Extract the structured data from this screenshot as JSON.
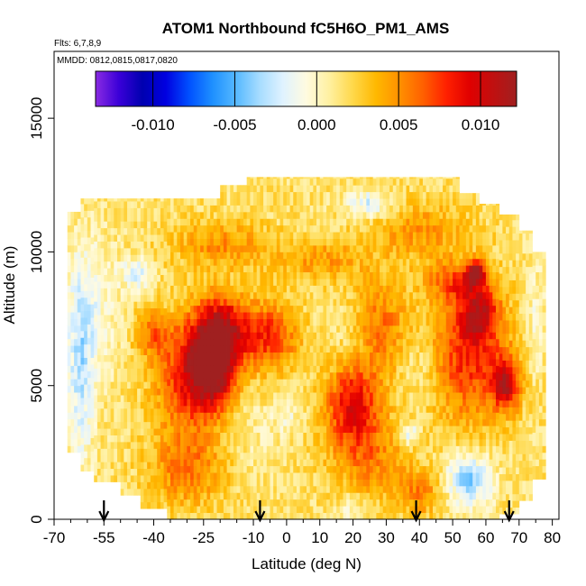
{
  "chart_data": {
    "type": "heatmap",
    "title": "ATOM1 Northbound fC5H6O_PM1_AMS",
    "flights_note": "Flts: 6,7,8,9",
    "dates_note": "MMDD: 0812,0815,0817,0820",
    "xlabel": "Latitude (deg N)",
    "ylabel": "Altitude (m)",
    "xlim": [
      -70,
      82
    ],
    "ylim": [
      0,
      17500
    ],
    "x_ticks": [
      -70,
      -55,
      -40,
      -25,
      -10,
      0,
      10,
      20,
      30,
      40,
      50,
      60,
      70,
      80
    ],
    "x_tick_labels": [
      "-70",
      "-55",
      "-40",
      "-25",
      "-10",
      "0",
      "10",
      "20",
      "30",
      "40",
      "50",
      "60",
      "70",
      "80"
    ],
    "x_minor_ticks": [
      -65,
      -60,
      -50,
      -45,
      -35,
      -30,
      -20,
      -15,
      -5,
      5,
      15,
      25,
      35,
      45,
      55,
      65,
      75
    ],
    "y_ticks": [
      0,
      5000,
      10000,
      15000
    ],
    "y_tick_labels": [
      "0",
      "5000",
      "10000",
      "15000"
    ],
    "colorbar": {
      "range": [
        -0.0135,
        0.0122
      ],
      "ticks": [
        -0.01,
        -0.005,
        0.0,
        0.005,
        0.01
      ],
      "tick_labels": [
        "-0.010",
        "-0.005",
        "0.000",
        "0.005",
        "0.010"
      ],
      "colors": [
        "#8a2be2",
        "#3a00d8",
        "#0000b0",
        "#0000e0",
        "#0050ff",
        "#1e90ff",
        "#55b8ff",
        "#a6dcff",
        "#dff2ff",
        "#fffbe0",
        "#fff0a0",
        "#ffd84a",
        "#ffb800",
        "#ff9000",
        "#ff6000",
        "#ff2000",
        "#e00000",
        "#c01010",
        "#a02020"
      ]
    },
    "flight_markers": {
      "latitudes": [
        -55,
        -8,
        39,
        67
      ]
    },
    "lat_bands": [
      {
        "lat": [
          -66,
          -62
        ],
        "alt": [
          2500,
          11500
        ]
      },
      {
        "lat": [
          -62,
          -58
        ],
        "alt": [
          1800,
          12000
        ]
      },
      {
        "lat": [
          -58,
          -50
        ],
        "alt": [
          1400,
          12000
        ]
      },
      {
        "lat": [
          -50,
          -44
        ],
        "alt": [
          900,
          12000
        ]
      },
      {
        "lat": [
          -44,
          -36
        ],
        "alt": [
          400,
          12000
        ]
      },
      {
        "lat": [
          -36,
          -28
        ],
        "alt": [
          0,
          12000
        ]
      },
      {
        "lat": [
          -28,
          -20
        ],
        "alt": [
          0,
          12000
        ]
      },
      {
        "lat": [
          -20,
          -12
        ],
        "alt": [
          0,
          12500
        ]
      },
      {
        "lat": [
          -12,
          -4
        ],
        "alt": [
          0,
          12800
        ]
      },
      {
        "lat": [
          -4,
          4
        ],
        "alt": [
          0,
          12800
        ]
      },
      {
        "lat": [
          4,
          12
        ],
        "alt": [
          0,
          12800
        ]
      },
      {
        "lat": [
          12,
          20
        ],
        "alt": [
          0,
          12800
        ]
      },
      {
        "lat": [
          20,
          28
        ],
        "alt": [
          0,
          12800
        ]
      },
      {
        "lat": [
          28,
          36
        ],
        "alt": [
          0,
          12800
        ]
      },
      {
        "lat": [
          36,
          44
        ],
        "alt": [
          0,
          12800
        ]
      },
      {
        "lat": [
          44,
          52
        ],
        "alt": [
          0,
          12800
        ]
      },
      {
        "lat": [
          52,
          58
        ],
        "alt": [
          0,
          12200
        ]
      },
      {
        "lat": [
          58,
          64
        ],
        "alt": [
          0,
          11800
        ]
      },
      {
        "lat": [
          64,
          70
        ],
        "alt": [
          200,
          11400
        ]
      },
      {
        "lat": [
          70,
          74
        ],
        "alt": [
          700,
          10800
        ]
      },
      {
        "lat": [
          74,
          78
        ],
        "alt": [
          1500,
          10000
        ]
      }
    ],
    "anomalies": [
      {
        "lat": -22,
        "alt": 6000,
        "value": 0.0115,
        "sig_lat": 5,
        "sig_alt": 1200
      },
      {
        "lat": -30,
        "alt": 5200,
        "value": 0.006,
        "sig_lat": 7,
        "sig_alt": 1500
      },
      {
        "lat": -18,
        "alt": 7200,
        "value": 0.005,
        "sig_lat": 6,
        "sig_alt": 900
      },
      {
        "lat": -5,
        "alt": 6800,
        "value": 0.006,
        "sig_lat": 6,
        "sig_alt": 900
      },
      {
        "lat": 20,
        "alt": 4300,
        "value": 0.0075,
        "sig_lat": 6,
        "sig_alt": 1100
      },
      {
        "lat": 28,
        "alt": 7200,
        "value": 0.0045,
        "sig_lat": 6,
        "sig_alt": 1200
      },
      {
        "lat": 55,
        "alt": 6200,
        "value": 0.0065,
        "sig_lat": 8,
        "sig_alt": 1800
      },
      {
        "lat": 66,
        "alt": 5100,
        "value": 0.008,
        "sig_lat": 3,
        "sig_alt": 700
      },
      {
        "lat": 58,
        "alt": 7800,
        "value": 0.006,
        "sig_lat": 4,
        "sig_alt": 700
      },
      {
        "lat": 57,
        "alt": 9200,
        "value": 0.009,
        "sig_lat": 2,
        "sig_alt": 300
      },
      {
        "lat": 50,
        "alt": 8900,
        "value": 0.004,
        "sig_lat": 6,
        "sig_alt": 500
      },
      {
        "lat": -40,
        "alt": 6900,
        "value": 0.004,
        "sig_lat": 4,
        "sig_alt": 600
      },
      {
        "lat": -30,
        "alt": 1800,
        "value": 0.004,
        "sig_lat": 8,
        "sig_alt": 900
      },
      {
        "lat": 25,
        "alt": 2200,
        "value": 0.0035,
        "sig_lat": 8,
        "sig_alt": 1000
      },
      {
        "lat": 40,
        "alt": 1000,
        "value": 0.0035,
        "sig_lat": 5,
        "sig_alt": 600
      },
      {
        "lat": -20,
        "alt": 10300,
        "value": 0.0035,
        "sig_lat": 10,
        "sig_alt": 600
      },
      {
        "lat": 10,
        "alt": 9700,
        "value": 0.003,
        "sig_lat": 10,
        "sig_alt": 600
      },
      {
        "lat": 40,
        "alt": 10800,
        "value": 0.003,
        "sig_lat": 10,
        "sig_alt": 800
      },
      {
        "lat": -62,
        "alt": 5500,
        "value": -0.004,
        "sig_lat": 3,
        "sig_alt": 2600
      },
      {
        "lat": -58,
        "alt": 8000,
        "value": -0.002,
        "sig_lat": 6,
        "sig_alt": 2000
      },
      {
        "lat": -45,
        "alt": 9200,
        "value": -0.004,
        "sig_lat": 3,
        "sig_alt": 400
      },
      {
        "lat": 55,
        "alt": 1500,
        "value": -0.0055,
        "sig_lat": 5,
        "sig_alt": 700
      },
      {
        "lat": 37,
        "alt": 3200,
        "value": -0.004,
        "sig_lat": 2,
        "sig_alt": 300
      },
      {
        "lat": 25,
        "alt": 11800,
        "value": -0.004,
        "sig_lat": 5,
        "sig_alt": 350
      },
      {
        "lat": 0,
        "alt": 4000,
        "value": -0.002,
        "sig_lat": 3,
        "sig_alt": 600
      },
      {
        "lat": 20,
        "alt": 6800,
        "value": -0.0015,
        "sig_lat": 5,
        "sig_alt": 900
      },
      {
        "lat": 40,
        "alt": 5800,
        "value": -0.0015,
        "sig_lat": 4,
        "sig_alt": 1000
      },
      {
        "lat": 75,
        "alt": 7500,
        "value": -0.002,
        "sig_lat": 2,
        "sig_alt": 1500
      },
      {
        "lat": -10,
        "alt": 3200,
        "value": -0.001,
        "sig_lat": 4,
        "sig_alt": 1200
      },
      {
        "lat": 20,
        "alt": 400,
        "value": -0.002,
        "sig_lat": 3,
        "sig_alt": 400
      }
    ]
  }
}
